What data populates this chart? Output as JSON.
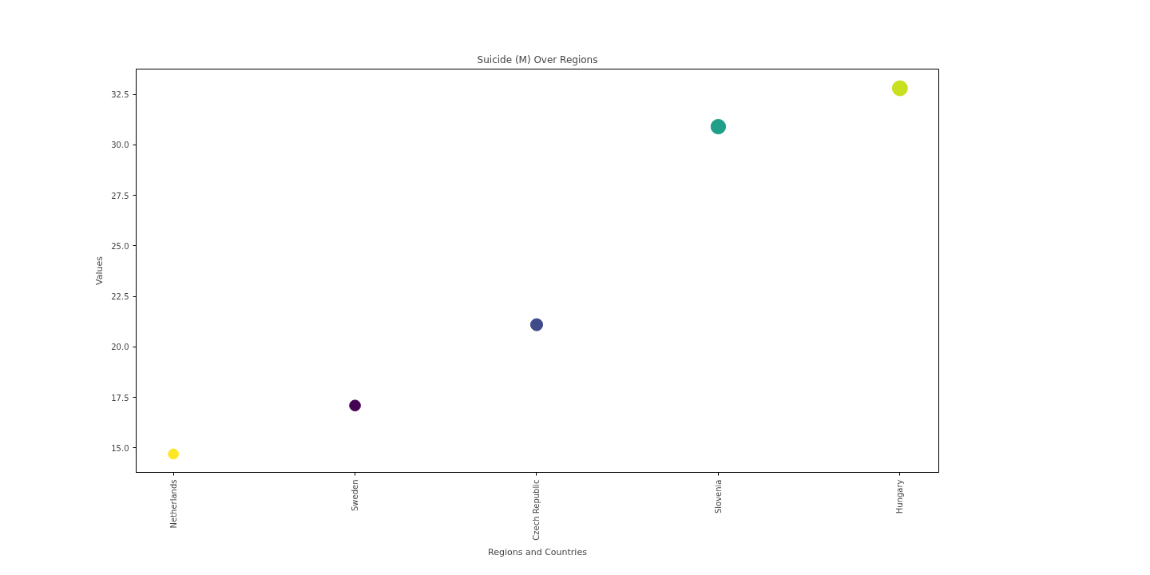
{
  "chart_data": {
    "type": "bubble",
    "title": "Suicide (M) Over Regions",
    "xlabel": "Regions and Countries",
    "ylabel": "Values",
    "categories": [
      "Netherlands",
      "Sweden",
      "Czech Republic",
      "Slovenia",
      "Hungary"
    ],
    "values": [
      14.7,
      17.1,
      21.1,
      30.9,
      32.8
    ],
    "sizes": [
      0.45,
      0.52,
      0.64,
      0.94,
      1
    ],
    "colors": [
      "#fde725",
      "#440154",
      "#3e4a89",
      "#1f9e89",
      "#c8e020"
    ],
    "ylim": [
      13.79,
      33.75
    ],
    "yticks": [
      {
        "value": 15,
        "label": "15.0"
      },
      {
        "value": 17.5,
        "label": "17.5"
      },
      {
        "value": 20,
        "label": "20.0"
      },
      {
        "value": 22.5,
        "label": "22.5"
      },
      {
        "value": 25,
        "label": "25.0"
      },
      {
        "value": 27.5,
        "label": "27.5"
      },
      {
        "value": 30,
        "label": "30.0"
      },
      {
        "value": 32.5,
        "label": "32.5"
      }
    ],
    "grid": false
  }
}
